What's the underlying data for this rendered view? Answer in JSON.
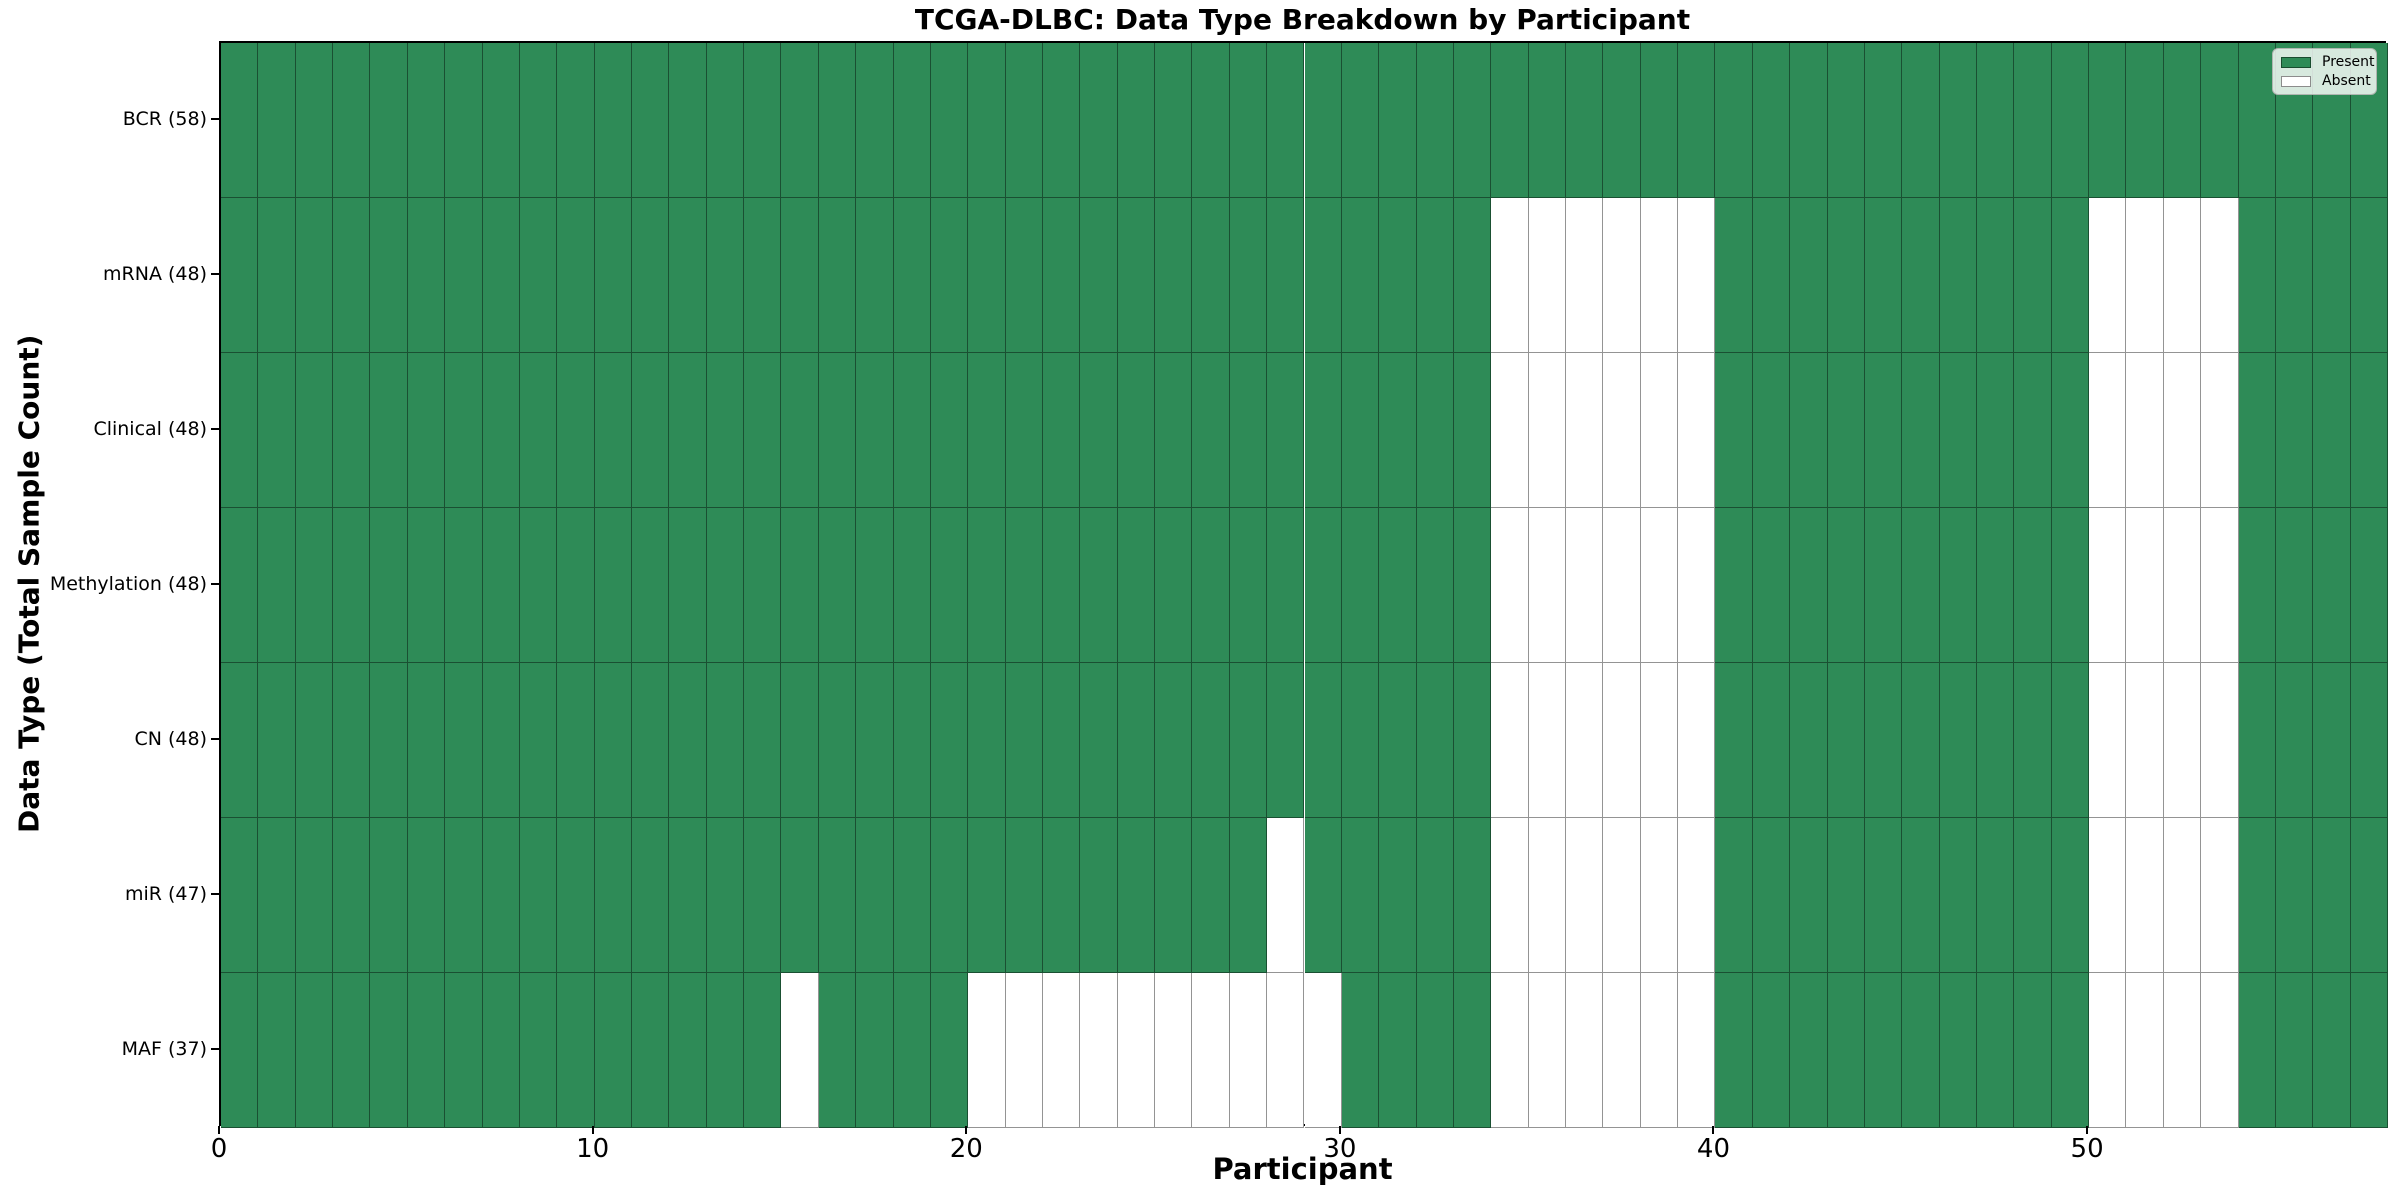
{
  "title": "TCGA-DLBC: Data Type Breakdown by Participant",
  "xlabel": "Participant",
  "ylabel": "Data Type (Total Sample Count)",
  "legend": {
    "present_label": "Present",
    "absent_label": "Absent"
  },
  "colors": {
    "present": "#2e8b57",
    "absent": "#ffffff",
    "grid_line": "rgba(0,0,0,0.42)",
    "spine": "#000000"
  },
  "chart_data": {
    "type": "heatmap",
    "title": "TCGA-DLBC: Data Type Breakdown by Participant",
    "xlabel": "Participant",
    "ylabel": "Data Type (Total Sample Count)",
    "legend_entries": [
      "Present",
      "Absent"
    ],
    "legend_position": "upper right",
    "n_participants": 58,
    "xlim": [
      0,
      58
    ],
    "x_ticks": [
      0,
      10,
      20,
      30,
      40,
      50
    ],
    "cell_states": {
      "present": "green",
      "absent": "white"
    },
    "rows": [
      {
        "data_type": "BCR",
        "label": "BCR (58)",
        "total": 58,
        "absent_participants": []
      },
      {
        "data_type": "mRNA",
        "label": "mRNA (48)",
        "total": 48,
        "absent_participants": [
          34,
          35,
          36,
          37,
          38,
          39,
          50,
          51,
          52,
          53
        ]
      },
      {
        "data_type": "Clinical",
        "label": "Clinical (48)",
        "total": 48,
        "absent_participants": [
          34,
          35,
          36,
          37,
          38,
          39,
          50,
          51,
          52,
          53
        ]
      },
      {
        "data_type": "Methylation",
        "label": "Methylation (48)",
        "total": 48,
        "absent_participants": [
          34,
          35,
          36,
          37,
          38,
          39,
          50,
          51,
          52,
          53
        ]
      },
      {
        "data_type": "CN",
        "label": "CN (48)",
        "total": 48,
        "absent_participants": [
          34,
          35,
          36,
          37,
          38,
          39,
          50,
          51,
          52,
          53
        ]
      },
      {
        "data_type": "miR",
        "label": "miR (47)",
        "total": 47,
        "absent_participants": [
          28,
          34,
          35,
          36,
          37,
          38,
          39,
          50,
          51,
          52,
          53
        ]
      },
      {
        "data_type": "MAF",
        "label": "MAF (37)",
        "total": 37,
        "absent_participants": [
          15,
          20,
          21,
          22,
          23,
          24,
          25,
          26,
          27,
          28,
          29,
          34,
          35,
          36,
          37,
          38,
          39,
          50,
          51,
          52,
          53
        ]
      }
    ]
  }
}
